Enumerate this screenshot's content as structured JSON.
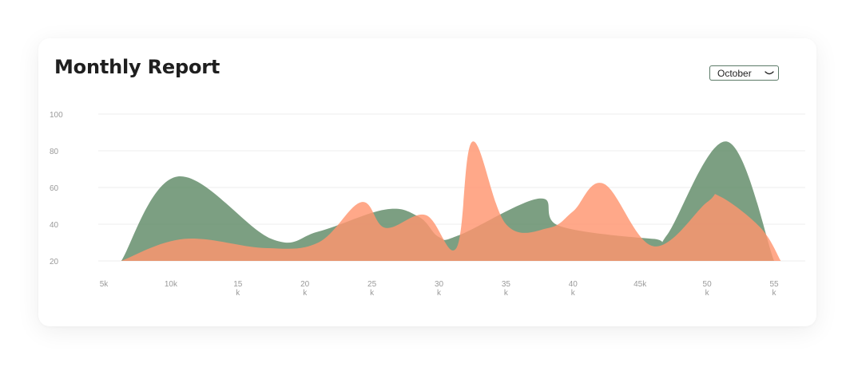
{
  "header": {
    "title": "Monthly Report"
  },
  "month_select": {
    "value": "October"
  },
  "colors": {
    "green": "#5f8a66",
    "orange": "#ff956f",
    "background": "#ffffff"
  },
  "chart_data": {
    "type": "area",
    "title": "Monthly Report",
    "xlabel": "",
    "ylabel": "",
    "ylim": [
      20,
      100
    ],
    "xlim": [
      5,
      55
    ],
    "grid": true,
    "yticks": [
      20,
      40,
      60,
      80,
      100
    ],
    "xticks": [
      {
        "value": 5,
        "label": [
          "5k"
        ]
      },
      {
        "value": 10,
        "label": [
          "10k"
        ]
      },
      {
        "value": 15,
        "label": [
          "15",
          "k"
        ]
      },
      {
        "value": 20,
        "label": [
          "20",
          "k"
        ]
      },
      {
        "value": 25,
        "label": [
          "25",
          "k"
        ]
      },
      {
        "value": 30,
        "label": [
          "30",
          "k"
        ]
      },
      {
        "value": 35,
        "label": [
          "35",
          "k"
        ]
      },
      {
        "value": 40,
        "label": [
          "40",
          "k"
        ]
      },
      {
        "value": 45,
        "label": [
          "45k"
        ]
      },
      {
        "value": 50,
        "label": [
          "50",
          "k"
        ]
      },
      {
        "value": 55,
        "label": [
          "55",
          "k"
        ]
      }
    ],
    "series": [
      {
        "color": "#5f8a66",
        "opacity": 0.82,
        "points": [
          [
            6.3,
            20
          ],
          [
            10.5,
            66
          ],
          [
            17.5,
            32
          ],
          [
            21,
            36
          ],
          [
            26,
            48
          ],
          [
            28.5,
            44
          ],
          [
            30,
            33
          ],
          [
            31.5,
            34
          ],
          [
            37.5,
            54
          ],
          [
            39,
            39
          ],
          [
            46,
            32
          ],
          [
            47,
            34
          ],
          [
            51.5,
            85
          ],
          [
            55,
            20
          ]
        ]
      },
      {
        "color": "#ff956f",
        "opacity": 0.82,
        "points": [
          [
            6.3,
            20
          ],
          [
            11,
            32
          ],
          [
            17,
            27
          ],
          [
            21,
            30
          ],
          [
            24.2,
            52
          ],
          [
            26,
            38
          ],
          [
            29,
            45
          ],
          [
            31.3,
            27
          ],
          [
            32.5,
            85
          ],
          [
            35,
            40
          ],
          [
            38.2,
            38
          ],
          [
            40,
            47
          ],
          [
            42.3,
            62
          ],
          [
            46,
            28
          ],
          [
            50,
            52
          ],
          [
            51,
            55
          ],
          [
            54,
            38
          ],
          [
            55.5,
            20
          ]
        ]
      }
    ]
  }
}
